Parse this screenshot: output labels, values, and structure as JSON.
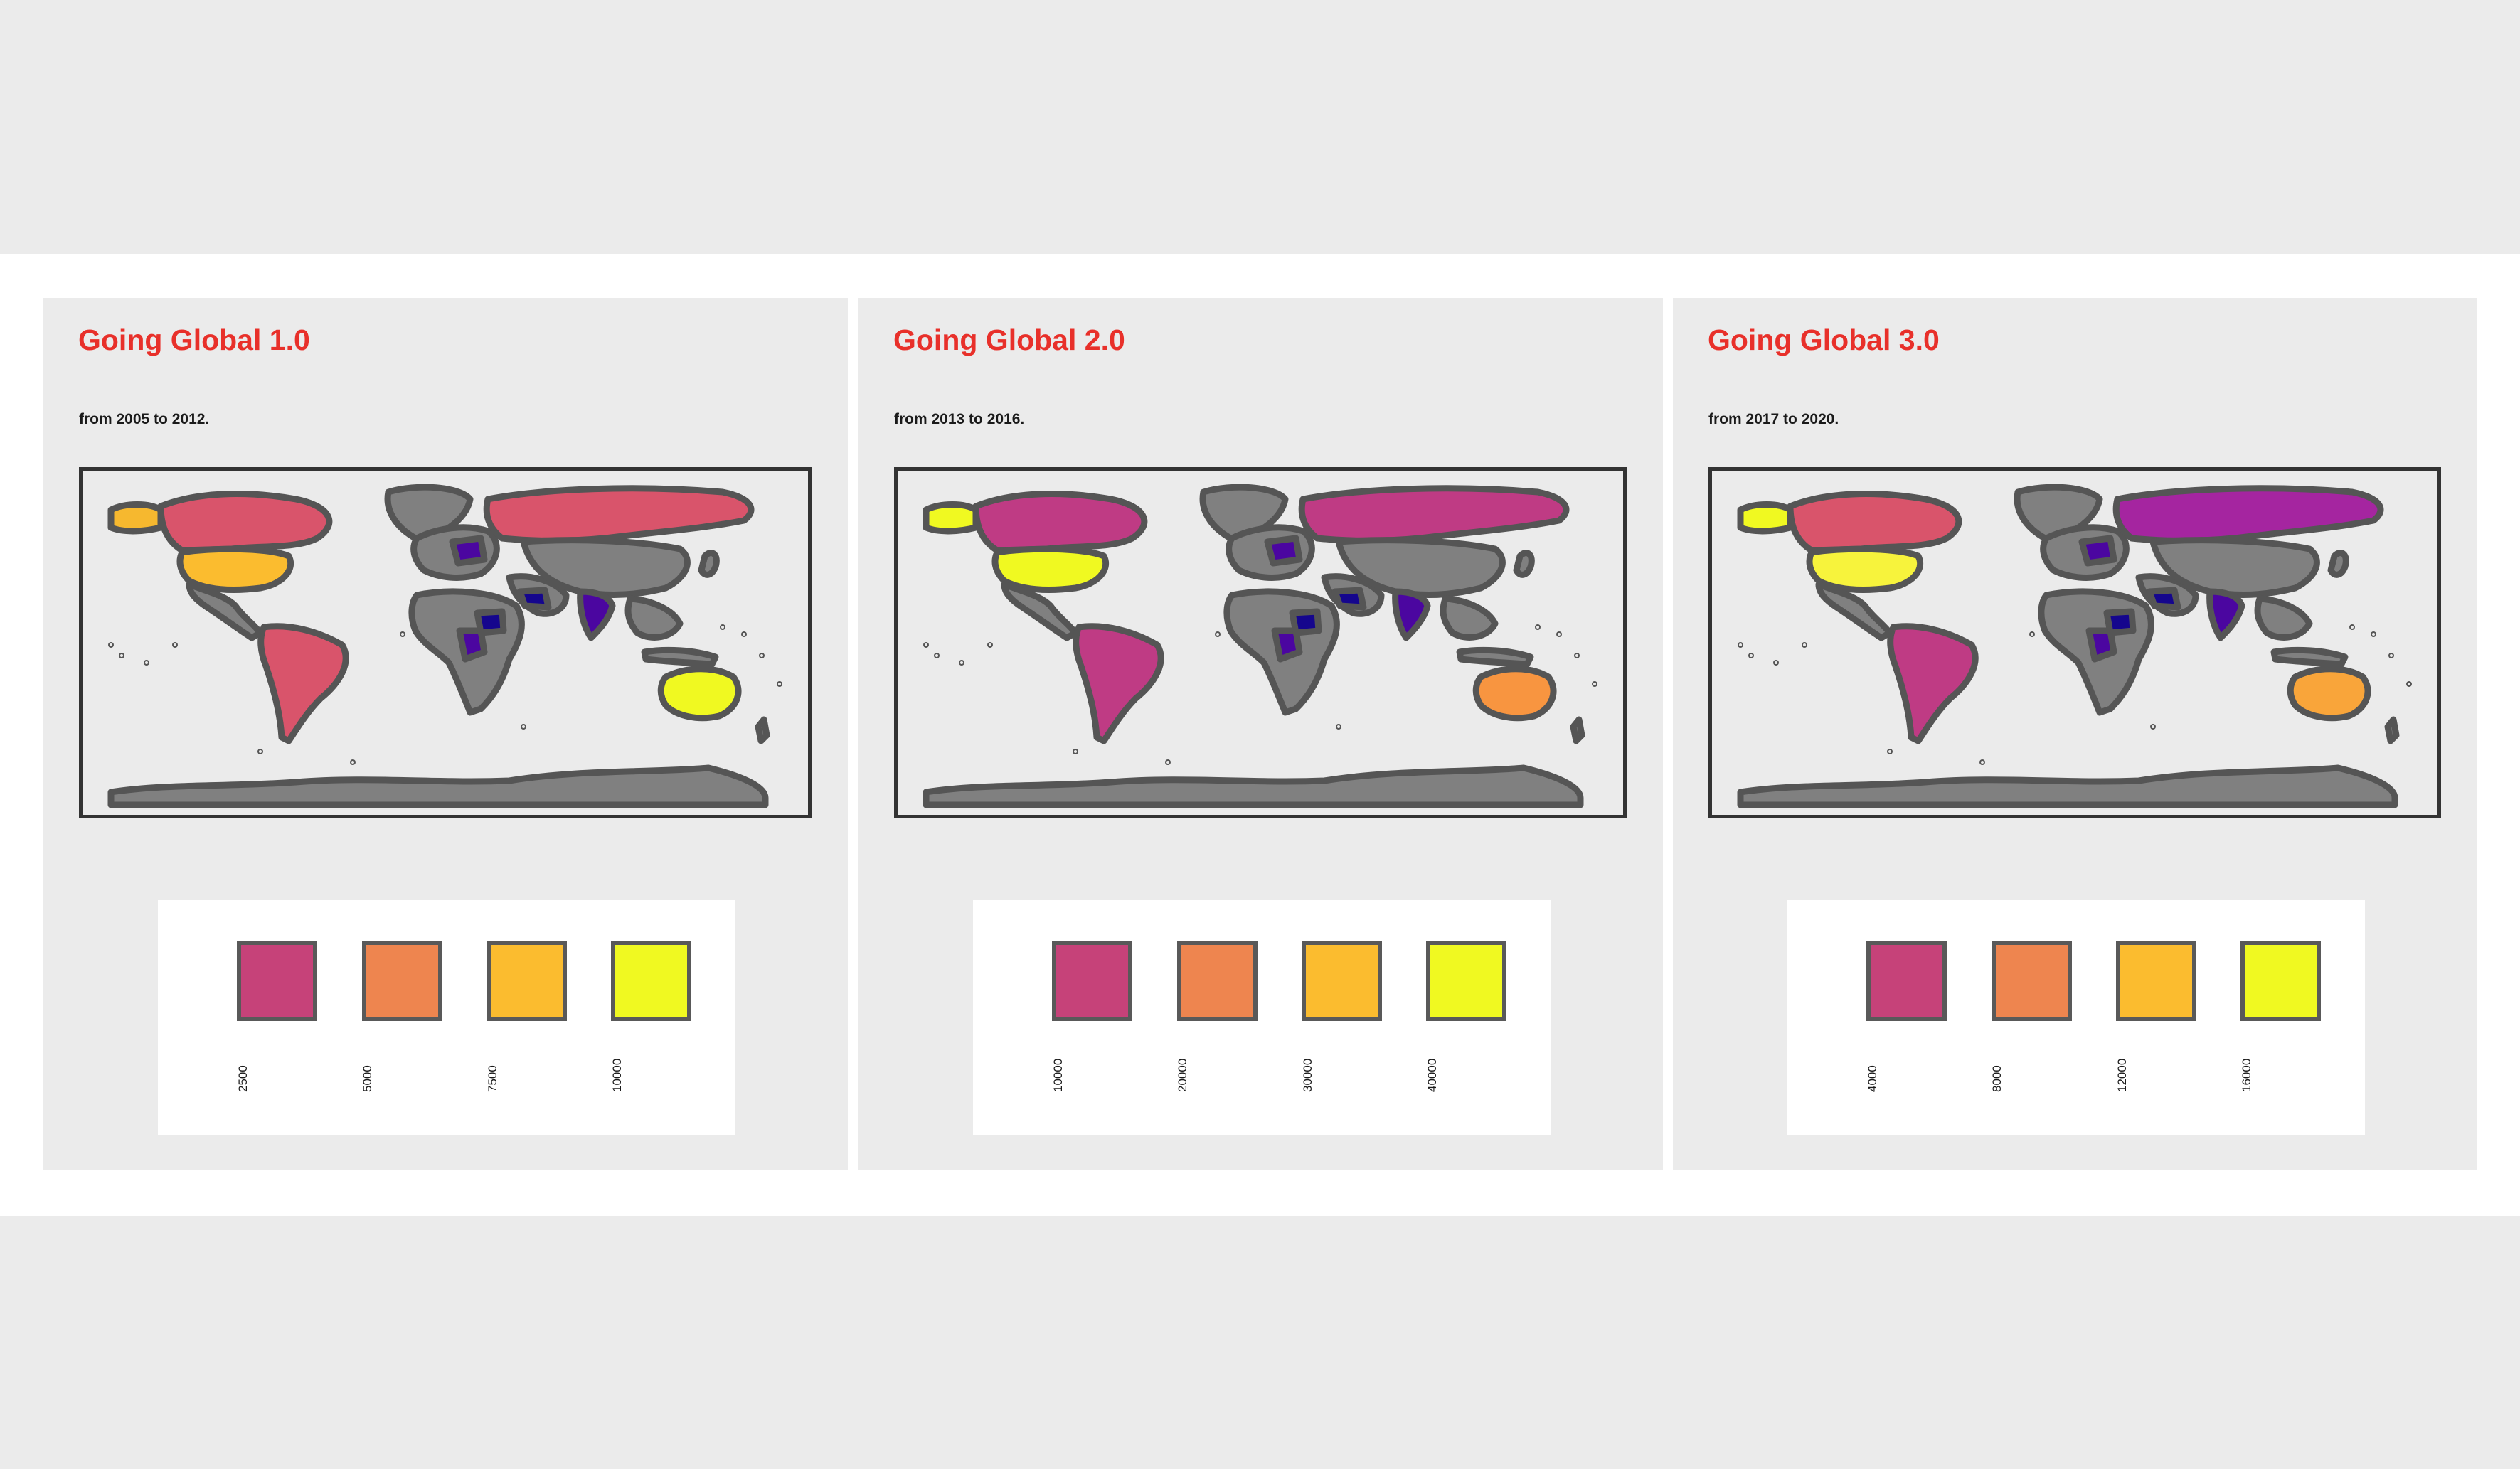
{
  "panels": [
    {
      "title": "Going Global 1.0",
      "subtitle": "from 2005 to 2012.",
      "legend": {
        "labels": [
          "2500",
          "5000",
          "7500",
          "10000"
        ],
        "colors": [
          "#c64279",
          "#ee854f",
          "#fbbc2f",
          "#f0f921"
        ]
      },
      "highlighted_regions": {
        "alaska": "#f6b82f",
        "canada": "#d9546b",
        "usa": "#fbbc2f",
        "russia": "#d9546b",
        "australia": "#f0f921",
        "brazil": "#d9546b"
      }
    },
    {
      "title": "Going Global 2.0",
      "subtitle": "from 2013 to 2016.",
      "legend": {
        "labels": [
          "10000",
          "20000",
          "30000",
          "40000"
        ],
        "colors": [
          "#c64279",
          "#ee854f",
          "#fbbc2f",
          "#f0f921"
        ]
      },
      "highlighted_regions": {
        "alaska": "#f0f921",
        "canada": "#bf3b84",
        "usa": "#f0f921",
        "russia": "#bf3b84",
        "australia": "#f89540",
        "brazil": "#bf3b84"
      }
    },
    {
      "title": "Going Global 3.0",
      "subtitle": "from 2017 to 2020.",
      "legend": {
        "labels": [
          "4000",
          "8000",
          "12000",
          "16000"
        ],
        "colors": [
          "#c64279",
          "#ee854f",
          "#fbbc2f",
          "#f0f921"
        ]
      },
      "highlighted_regions": {
        "alaska": "#f0f921",
        "canada": "#d9546b",
        "usa": "#f7f33c",
        "russia": "#a525a0",
        "australia": "#f9a53a",
        "brazil": "#bf3b84"
      }
    }
  ],
  "colors": {
    "title": "#e8302a",
    "land_default": "#808080",
    "border": "#555555",
    "low_value": "#4b06a0",
    "lowest_value": "#15068d"
  }
}
